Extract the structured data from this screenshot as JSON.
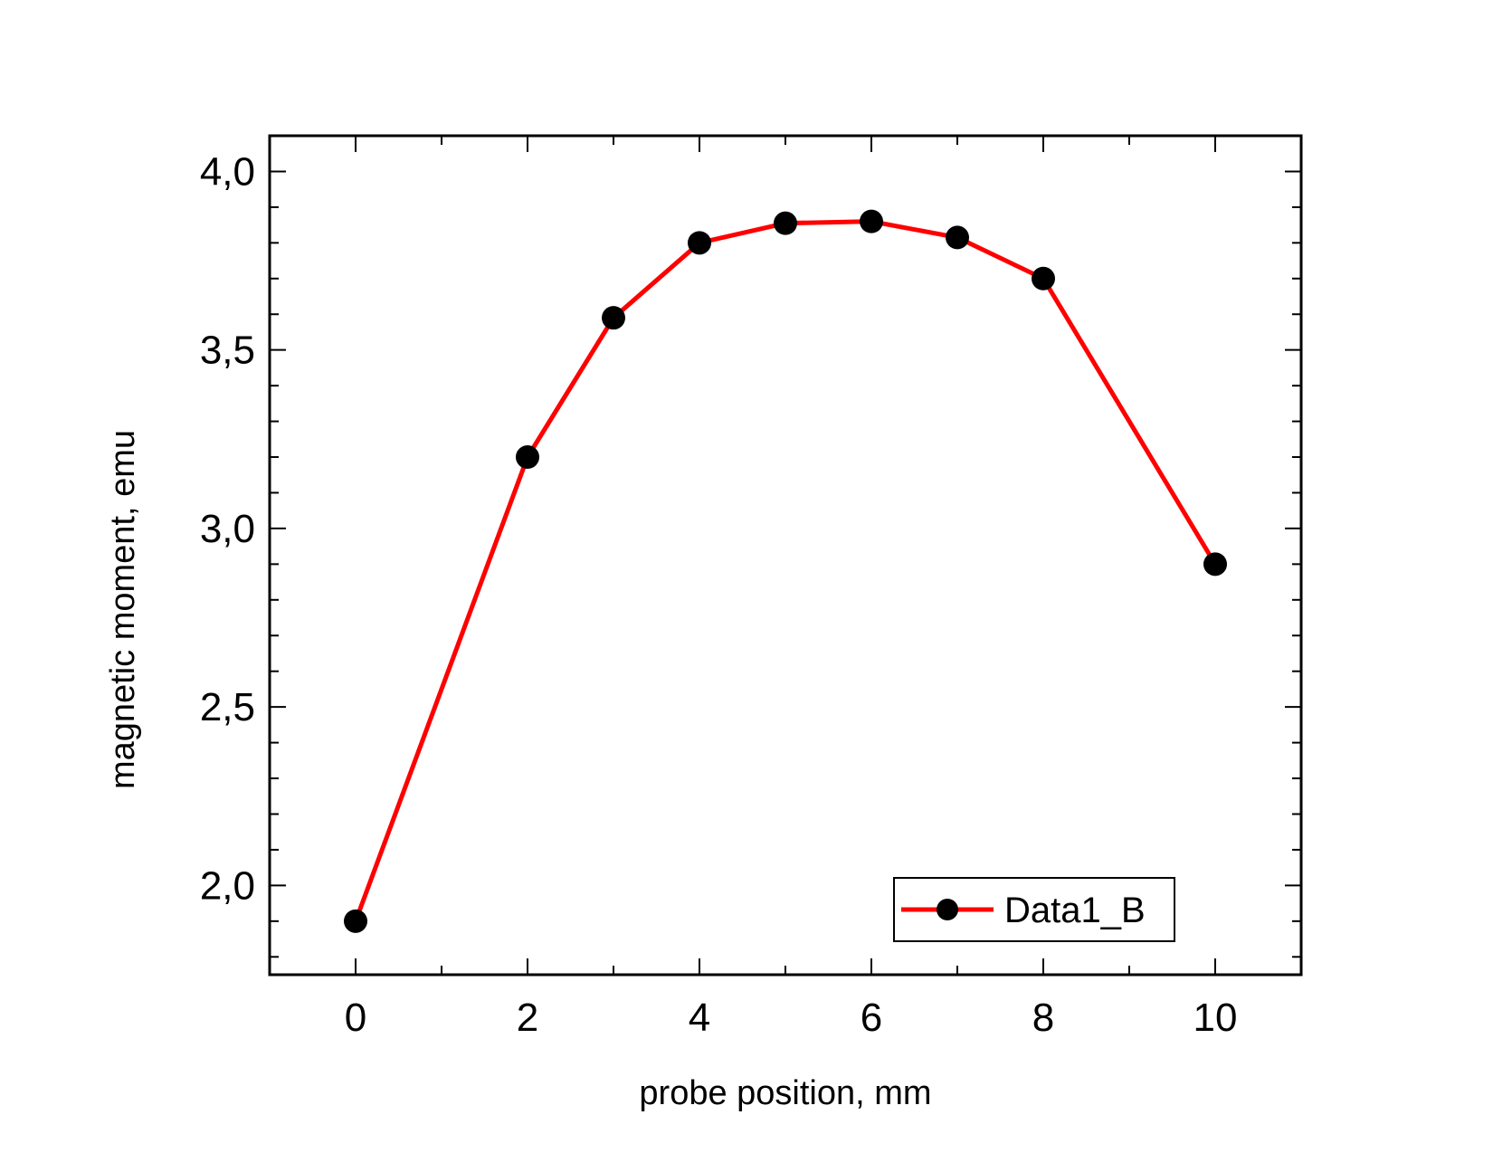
{
  "chart_data": {
    "type": "line",
    "xlabel": "probe position, mm",
    "ylabel": "magnetic moment, emu",
    "xlim": [
      -1,
      11
    ],
    "ylim": [
      1.75,
      4.1
    ],
    "x_ticks": [
      {
        "value": 0,
        "label": "0"
      },
      {
        "value": 2,
        "label": "2"
      },
      {
        "value": 4,
        "label": "4"
      },
      {
        "value": 6,
        "label": "6"
      },
      {
        "value": 8,
        "label": "8"
      },
      {
        "value": 10,
        "label": "10"
      }
    ],
    "x_minor_step": 1,
    "y_ticks": [
      {
        "value": 2.0,
        "label": "2,0"
      },
      {
        "value": 2.5,
        "label": "2,5"
      },
      {
        "value": 3.0,
        "label": "3,0"
      },
      {
        "value": 3.5,
        "label": "3,5"
      },
      {
        "value": 4.0,
        "label": "4,0"
      }
    ],
    "y_minor_step": 0.1,
    "grid": false,
    "legend_position": "bottom-right",
    "series": [
      {
        "name": "Data1_B",
        "line_color": "#ff0000",
        "marker_color": "#000000",
        "x": [
          0,
          2,
          3,
          4,
          5,
          6,
          7,
          8,
          10
        ],
        "y": [
          1.9,
          3.2,
          3.59,
          3.8,
          3.855,
          3.86,
          3.815,
          3.7,
          2.9
        ]
      }
    ]
  }
}
